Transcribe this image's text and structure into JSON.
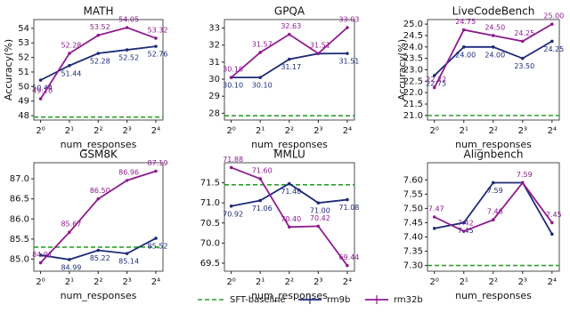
{
  "legend": {
    "baseline": "SFT-baseline",
    "baseline_color": "#2ca02c",
    "series": [
      {
        "name": "rm9b",
        "color": "#1f2a78"
      },
      {
        "name": "rm32b",
        "color": "#8e1b8e"
      }
    ]
  },
  "chart_data": [
    {
      "type": "line",
      "title": "MATH",
      "ylabel": "Accuracy(%)",
      "xlabel": "num_responses",
      "xscale": "log",
      "x": [
        1,
        2,
        4,
        8,
        16
      ],
      "xlim": [
        0.85,
        19
      ],
      "xticks": [
        {
          "value": 1,
          "label": "2⁰"
        },
        {
          "value": 2,
          "label": "2¹"
        },
        {
          "value": 4,
          "label": "2²"
        },
        {
          "value": 8,
          "label": "2³"
        },
        {
          "value": 16,
          "label": "2⁴"
        }
      ],
      "ylim": [
        47.7,
        54.6
      ],
      "yticks": [
        48,
        49,
        50,
        51,
        52,
        53,
        54
      ],
      "baseline": 47.9,
      "series": [
        {
          "values": [
            50.44,
            51.44,
            52.28,
            52.52,
            52.76
          ],
          "value_labels": [
            "50.44",
            "51.44",
            "52.28",
            "52.52",
            "52.76"
          ]
        },
        {
          "values": [
            49.16,
            52.28,
            53.52,
            54.05,
            53.32
          ],
          "value_labels": [
            "49.16",
            "52.28",
            "53.52",
            "54.05",
            "53.32"
          ]
        }
      ]
    },
    {
      "type": "line",
      "title": "GPQA",
      "xlabel": "num_responses",
      "xscale": "log",
      "x": [
        1,
        2,
        4,
        8,
        16
      ],
      "xlim": [
        0.85,
        19
      ],
      "xticks": [
        {
          "value": 1,
          "label": "2⁰"
        },
        {
          "value": 2,
          "label": "2¹"
        },
        {
          "value": 4,
          "label": "2²"
        },
        {
          "value": 8,
          "label": "2³"
        },
        {
          "value": 16,
          "label": "2⁴"
        }
      ],
      "ylim": [
        27.6,
        33.5
      ],
      "yticks": [
        28,
        29,
        30,
        31,
        32,
        33
      ],
      "baseline": 27.85,
      "series": [
        {
          "values": [
            30.1,
            30.1,
            31.17,
            31.5,
            31.51
          ],
          "value_labels": [
            "30.10",
            "30.10",
            "31.17",
            null,
            "31.51"
          ]
        },
        {
          "values": [
            30.1,
            31.57,
            32.63,
            31.51,
            33.03
          ],
          "value_labels": [
            "30.10",
            "31.57",
            "32.63",
            "31.51",
            "33.03"
          ]
        }
      ]
    },
    {
      "type": "line",
      "title": "LiveCodeBench",
      "ylabel": "Accuracy(%)",
      "xlabel": "num_responses",
      "xscale": "log",
      "x": [
        1,
        2,
        4,
        8,
        16
      ],
      "xlim": [
        0.85,
        19
      ],
      "xticks": [
        {
          "value": 1,
          "label": "2⁰"
        },
        {
          "value": 2,
          "label": "2¹"
        },
        {
          "value": 4,
          "label": "2²"
        },
        {
          "value": 8,
          "label": "2³"
        },
        {
          "value": 16,
          "label": "2⁴"
        }
      ],
      "ylim": [
        20.8,
        25.2
      ],
      "yticks": [
        {
          "value": 21,
          "label": "21.0"
        },
        21.5,
        {
          "value": 22,
          "label": "22.0"
        },
        22.5,
        {
          "value": 23,
          "label": "23.0"
        },
        23.5,
        {
          "value": 24,
          "label": "24.0"
        },
        24.5,
        {
          "value": 25,
          "label": "25.0"
        }
      ],
      "baseline": 21.0,
      "series": [
        {
          "values": [
            22.75,
            24.0,
            24.0,
            23.5,
            24.25
          ],
          "value_labels": [
            "22.75",
            "24.00",
            "24.00",
            "23.50",
            "24.25"
          ]
        },
        {
          "values": [
            22.22,
            24.75,
            24.5,
            24.25,
            25.0
          ],
          "value_labels": [
            "22.22",
            "24.75",
            "24.50",
            "24.25",
            "25.00"
          ]
        }
      ]
    },
    {
      "type": "line",
      "title": "GSM8K",
      "xlabel": "num_responses",
      "xscale": "log",
      "x": [
        1,
        2,
        4,
        8,
        16
      ],
      "xlim": [
        0.85,
        19
      ],
      "xticks": [
        {
          "value": 1,
          "label": "2⁰"
        },
        {
          "value": 2,
          "label": "2¹"
        },
        {
          "value": 4,
          "label": "2²"
        },
        {
          "value": 8,
          "label": "2³"
        },
        {
          "value": 16,
          "label": "2⁴"
        }
      ],
      "ylim": [
        84.7,
        87.4
      ],
      "yticks": [
        {
          "value": 85,
          "label": "85.0"
        },
        85.5,
        {
          "value": 86,
          "label": "86.0"
        },
        86.5,
        {
          "value": 87,
          "label": "87.0"
        }
      ],
      "baseline": 85.3,
      "series": [
        {
          "values": [
            85.1,
            84.99,
            85.22,
            85.14,
            85.52
          ],
          "value_labels": [
            null,
            "84.99",
            "85.22",
            "85.14",
            "85.52"
          ]
        },
        {
          "values": [
            84.91,
            85.67,
            86.5,
            86.96,
            87.19
          ],
          "value_labels": [
            "84.91",
            "85.67",
            "86.50",
            "86.96",
            "87.19"
          ]
        }
      ]
    },
    {
      "type": "line",
      "title": "MMLU",
      "xlabel": "num_responses",
      "xscale": "log",
      "x": [
        1,
        2,
        4,
        8,
        16
      ],
      "xlim": [
        0.85,
        19
      ],
      "xticks": [
        {
          "value": 1,
          "label": "2⁰"
        },
        {
          "value": 2,
          "label": "2¹"
        },
        {
          "value": 4,
          "label": "2²"
        },
        {
          "value": 8,
          "label": "2³"
        },
        {
          "value": 16,
          "label": "2⁴"
        }
      ],
      "ylim": [
        69.3,
        72.0
      ],
      "yticks": [
        69.5,
        {
          "value": 70,
          "label": "70.0"
        },
        70.5,
        {
          "value": 71,
          "label": "71.0"
        },
        71.5
      ],
      "baseline": 71.45,
      "series": [
        {
          "values": [
            70.92,
            71.06,
            71.48,
            71.0,
            71.08
          ],
          "value_labels": [
            "70.92",
            "71.06",
            "71.48",
            "71.00",
            "71.08"
          ]
        },
        {
          "values": [
            71.88,
            71.6,
            70.4,
            70.42,
            69.44
          ],
          "value_labels": [
            "71.88",
            "71.60",
            "70.40",
            "70.42",
            "69.44"
          ]
        }
      ]
    },
    {
      "type": "line",
      "title": "Alignbench",
      "xlabel": "num_responses",
      "xscale": "log",
      "x": [
        1,
        2,
        4,
        8,
        16
      ],
      "xlim": [
        0.85,
        19
      ],
      "xticks": [
        {
          "value": 1,
          "label": "2⁰"
        },
        {
          "value": 2,
          "label": "2¹"
        },
        {
          "value": 4,
          "label": "2²"
        },
        {
          "value": 8,
          "label": "2³"
        },
        {
          "value": 16,
          "label": "2⁴"
        }
      ],
      "ylim": [
        7.28,
        7.66
      ],
      "yticks": [
        {
          "value": 7.3,
          "label": "7.30"
        },
        7.35,
        {
          "value": 7.4,
          "label": "7.40"
        },
        7.45,
        {
          "value": 7.5,
          "label": "7.50"
        },
        7.55,
        {
          "value": 7.6,
          "label": "7.60"
        }
      ],
      "baseline": 7.3,
      "series": [
        {
          "values": [
            7.43,
            7.45,
            7.59,
            7.59,
            7.41
          ],
          "value_labels": [
            null,
            "7.45",
            "7.59",
            null,
            null
          ]
        },
        {
          "values": [
            7.47,
            7.42,
            7.46,
            7.59,
            7.45
          ],
          "value_labels": [
            "7.47",
            "7.42",
            "7.46",
            "7.59",
            "7.45"
          ]
        }
      ]
    }
  ]
}
